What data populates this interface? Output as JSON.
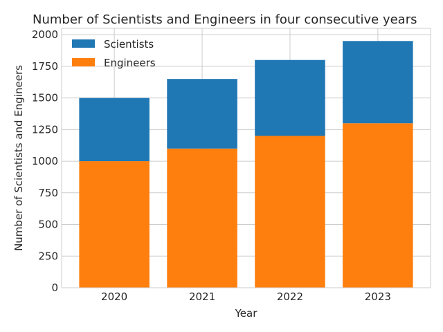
{
  "chart_data": {
    "type": "bar",
    "stacked": true,
    "title": "Number of Scientists and Engineers in four consecutive years",
    "xlabel": "Year",
    "ylabel": "Number of Scientists and Engineers",
    "categories": [
      "2020",
      "2021",
      "2022",
      "2023"
    ],
    "series": [
      {
        "name": "Engineers",
        "values": [
          1000,
          1100,
          1200,
          1300
        ],
        "color": "#ff7f0e"
      },
      {
        "name": "Scientists",
        "values": [
          500,
          550,
          600,
          650
        ],
        "color": "#1f77b4"
      }
    ],
    "ylim": [
      0,
      2050
    ],
    "yticks": [
      0,
      250,
      500,
      750,
      1000,
      1250,
      1500,
      1750,
      2000
    ],
    "grid": true,
    "legend": {
      "position": "top-left",
      "entries": [
        "Scientists",
        "Engineers"
      ]
    }
  }
}
